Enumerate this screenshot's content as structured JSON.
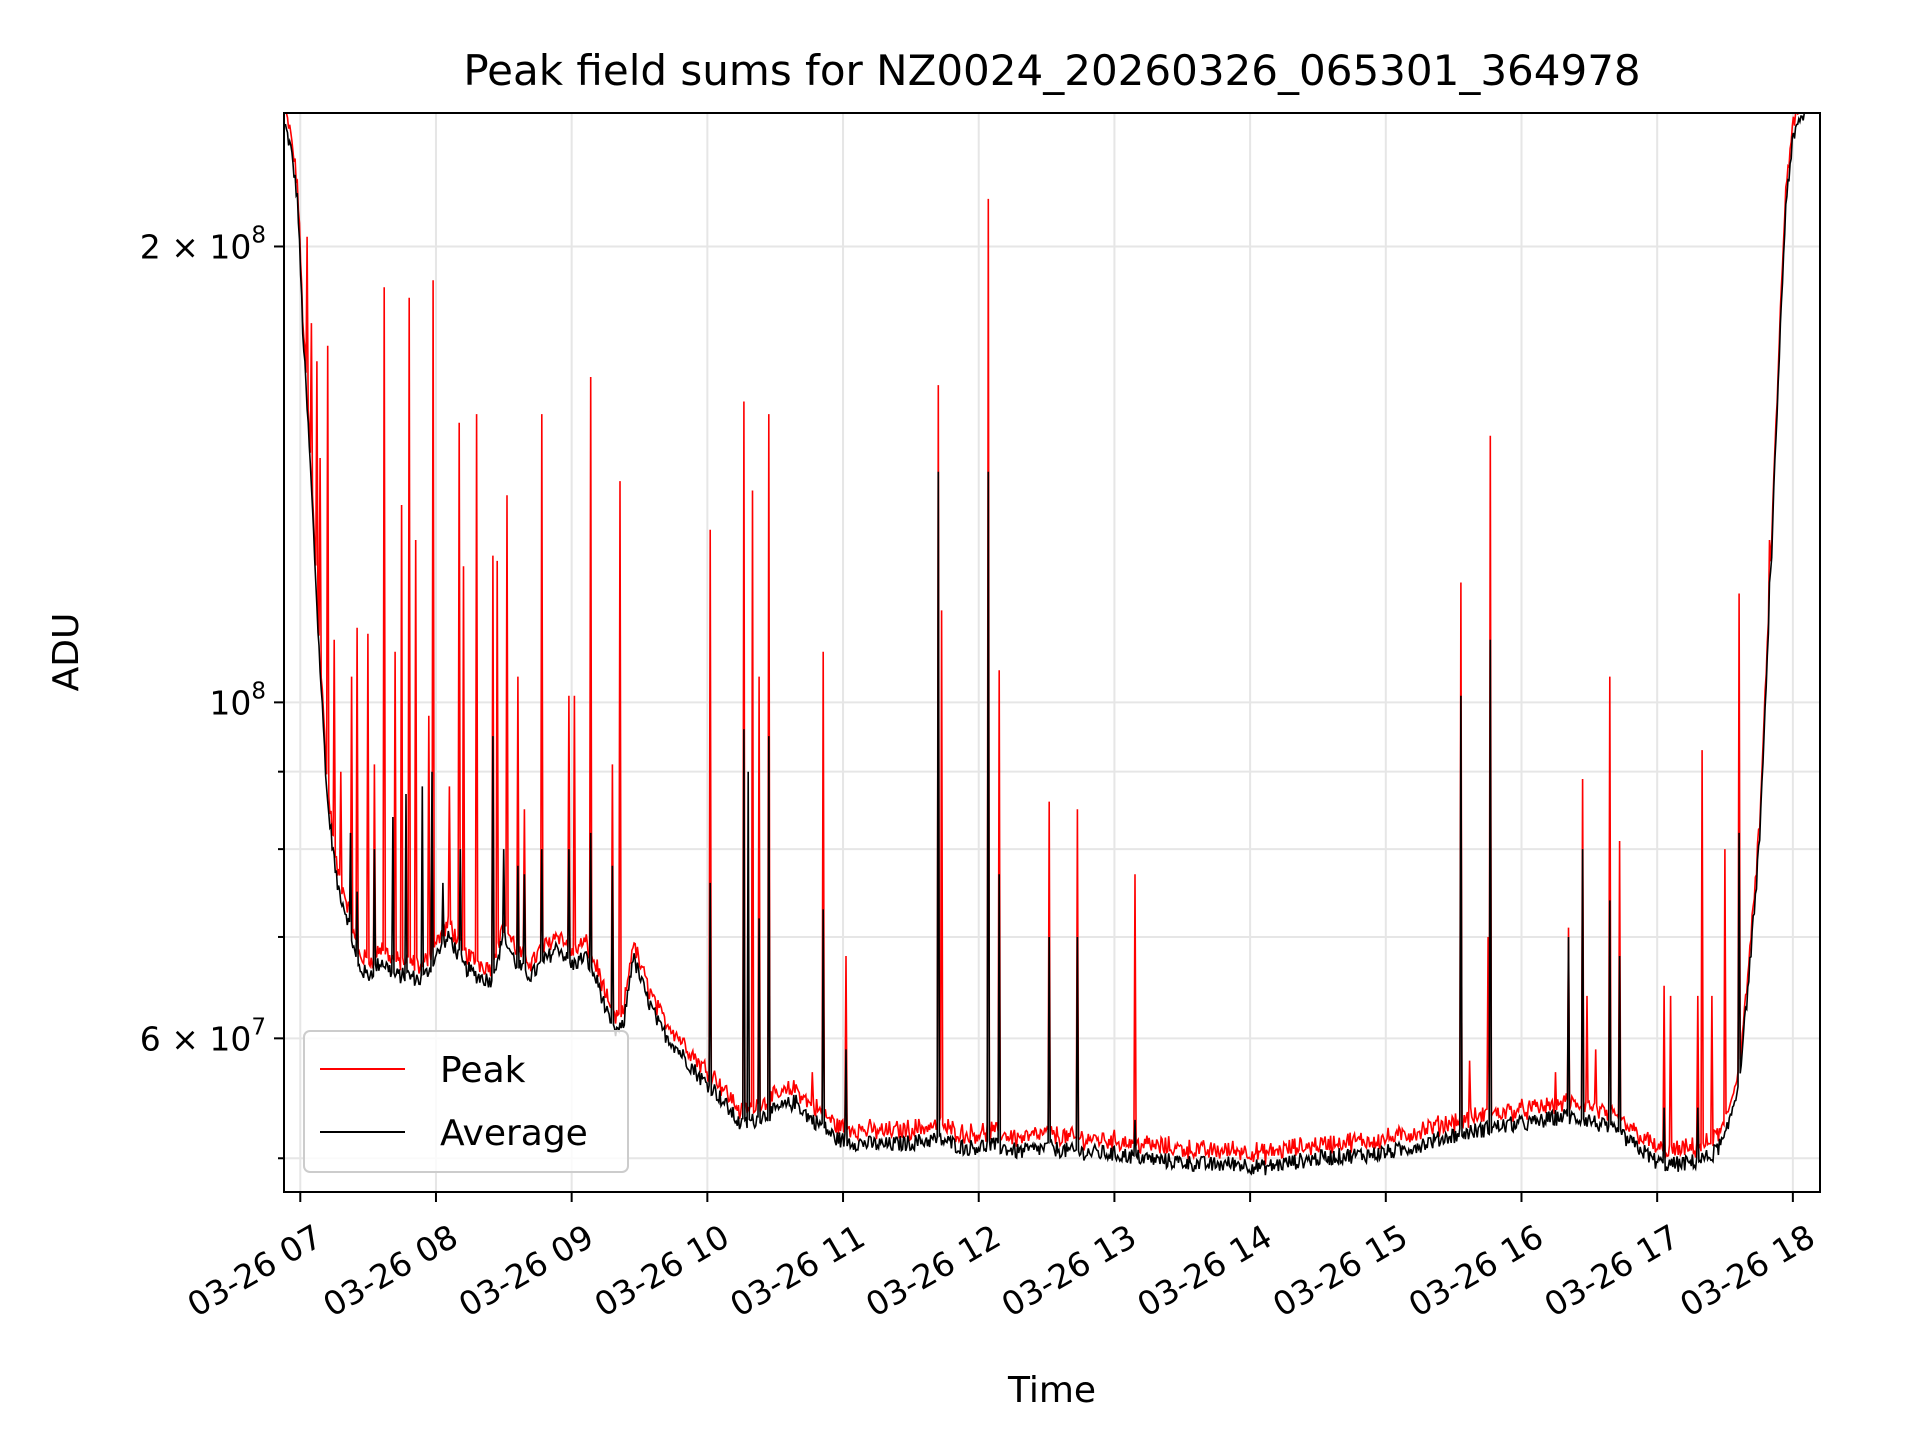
{
  "chart_data": {
    "type": "line",
    "title": "Peak field sums for NZ0024_20260326_065301_364978",
    "xlabel": "Time",
    "ylabel": "ADU",
    "yscale": "log",
    "xlim": [
      6.88,
      18.2
    ],
    "ylim": [
      47500000,
      245000000
    ],
    "grid": true,
    "legend_position": "lower-left",
    "x_ticks": [
      {
        "value": 7,
        "label": "03-26 07"
      },
      {
        "value": 8,
        "label": "03-26 08"
      },
      {
        "value": 9,
        "label": "03-26 09"
      },
      {
        "value": 10,
        "label": "03-26 10"
      },
      {
        "value": 11,
        "label": "03-26 11"
      },
      {
        "value": 12,
        "label": "03-26 12"
      },
      {
        "value": 13,
        "label": "03-26 13"
      },
      {
        "value": 14,
        "label": "03-26 14"
      },
      {
        "value": 15,
        "label": "03-26 15"
      },
      {
        "value": 16,
        "label": "03-26 16"
      },
      {
        "value": 17,
        "label": "03-26 17"
      },
      {
        "value": 18,
        "label": "03-26 18"
      }
    ],
    "y_ticks": [
      {
        "value": 200000000,
        "mantissa": "2",
        "exponent": "8"
      },
      {
        "value": 100000000,
        "mantissa": "",
        "exponent": "8"
      },
      {
        "value": 60000000,
        "mantissa": "6",
        "exponent": "7"
      }
    ],
    "y_minor_ticks": [
      50000000,
      70000000,
      80000000,
      90000000
    ],
    "series": [
      {
        "name": "Average",
        "color": "#000000",
        "baseline": [
          [
            6.89,
            240000000
          ],
          [
            6.93,
            232000000
          ],
          [
            6.98,
            215000000
          ],
          [
            7.02,
            175000000
          ],
          [
            7.08,
            140000000
          ],
          [
            7.13,
            112000000
          ],
          [
            7.2,
            86000000
          ],
          [
            7.27,
            76000000
          ],
          [
            7.35,
            72000000
          ],
          [
            7.42,
            67000000
          ],
          [
            7.5,
            66000000
          ],
          [
            7.6,
            67500000
          ],
          [
            7.7,
            66000000
          ],
          [
            7.8,
            66000000
          ],
          [
            7.9,
            65500000
          ],
          [
            8.0,
            68000000
          ],
          [
            8.1,
            70000000
          ],
          [
            8.2,
            67000000
          ],
          [
            8.3,
            66000000
          ],
          [
            8.4,
            65500000
          ],
          [
            8.5,
            70000000
          ],
          [
            8.6,
            67000000
          ],
          [
            8.7,
            66000000
          ],
          [
            8.8,
            67500000
          ],
          [
            8.9,
            69000000
          ],
          [
            9.0,
            67000000
          ],
          [
            9.1,
            68000000
          ],
          [
            9.2,
            65000000
          ],
          [
            9.3,
            60500000
          ],
          [
            9.38,
            61000000
          ],
          [
            9.45,
            68000000
          ],
          [
            9.55,
            64000000
          ],
          [
            9.65,
            61000000
          ],
          [
            9.75,
            59500000
          ],
          [
            9.85,
            58000000
          ],
          [
            9.95,
            56500000
          ],
          [
            10.05,
            55500000
          ],
          [
            10.15,
            54000000
          ],
          [
            10.25,
            52500000
          ],
          [
            10.35,
            53000000
          ],
          [
            10.45,
            53500000
          ],
          [
            10.55,
            54000000
          ],
          [
            10.65,
            54500000
          ],
          [
            10.75,
            53200000
          ],
          [
            10.85,
            52500000
          ],
          [
            10.95,
            51500000
          ],
          [
            11.1,
            51200000
          ],
          [
            11.3,
            51000000
          ],
          [
            11.5,
            51200000
          ],
          [
            11.7,
            51500000
          ],
          [
            11.9,
            50800000
          ],
          [
            12.1,
            51000000
          ],
          [
            12.3,
            50500000
          ],
          [
            12.5,
            50800000
          ],
          [
            12.7,
            50500000
          ],
          [
            12.9,
            50400000
          ],
          [
            13.1,
            50200000
          ],
          [
            13.3,
            49900000
          ],
          [
            13.5,
            49700000
          ],
          [
            13.7,
            49500000
          ],
          [
            13.9,
            49600000
          ],
          [
            14.1,
            49300000
          ],
          [
            14.3,
            49700000
          ],
          [
            14.5,
            50000000
          ],
          [
            14.7,
            50200000
          ],
          [
            14.9,
            50300000
          ],
          [
            15.1,
            50600000
          ],
          [
            15.3,
            51200000
          ],
          [
            15.5,
            51800000
          ],
          [
            15.7,
            52200000
          ],
          [
            15.9,
            52600000
          ],
          [
            16.1,
            52800000
          ],
          [
            16.3,
            53300000
          ],
          [
            16.5,
            53000000
          ],
          [
            16.7,
            52000000
          ],
          [
            16.9,
            50500000
          ],
          [
            17.0,
            49700000
          ],
          [
            17.1,
            49500000
          ],
          [
            17.2,
            49600000
          ],
          [
            17.3,
            49800000
          ],
          [
            17.4,
            50200000
          ],
          [
            17.5,
            51500000
          ],
          [
            17.6,
            56000000
          ],
          [
            17.65,
            62000000
          ],
          [
            17.7,
            70000000
          ],
          [
            17.75,
            80000000
          ],
          [
            17.8,
            100000000
          ],
          [
            17.85,
            130000000
          ],
          [
            17.9,
            170000000
          ],
          [
            17.95,
            215000000
          ],
          [
            18.0,
            235000000
          ],
          [
            18.05,
            242000000
          ],
          [
            18.1,
            246000000
          ]
        ],
        "spikes": [
          [
            7.37,
            82000000
          ],
          [
            7.42,
            75000000
          ],
          [
            7.55,
            80000000
          ],
          [
            7.68,
            84000000
          ],
          [
            7.78,
            87000000
          ],
          [
            7.9,
            88000000
          ],
          [
            7.97,
            90000000
          ],
          [
            8.05,
            76000000
          ],
          [
            8.18,
            80000000
          ],
          [
            8.42,
            95000000
          ],
          [
            8.5,
            80000000
          ],
          [
            8.6,
            78000000
          ],
          [
            8.65,
            77000000
          ],
          [
            8.78,
            80000000
          ],
          [
            8.98,
            80000000
          ],
          [
            9.14,
            82000000
          ],
          [
            9.3,
            78000000
          ],
          [
            10.02,
            76000000
          ],
          [
            10.27,
            96000000
          ],
          [
            10.3,
            90000000
          ],
          [
            10.38,
            72000000
          ],
          [
            10.45,
            95000000
          ],
          [
            10.85,
            73000000
          ],
          [
            11.02,
            59000000
          ],
          [
            11.7,
            142000000
          ],
          [
            12.07,
            142000000
          ],
          [
            12.15,
            77000000
          ],
          [
            12.52,
            70000000
          ],
          [
            12.73,
            70000000
          ],
          [
            13.15,
            53000000
          ],
          [
            15.55,
            101000000
          ],
          [
            15.77,
            110000000
          ],
          [
            16.35,
            70000000
          ],
          [
            16.45,
            80000000
          ],
          [
            16.65,
            74000000
          ],
          [
            16.72,
            68000000
          ],
          [
            17.05,
            54000000
          ],
          [
            17.3,
            54000000
          ],
          [
            17.6,
            82000000
          ],
          [
            17.83,
            120000000
          ]
        ]
      },
      {
        "name": "Peak",
        "color": "#ff0000",
        "baseline_offset": 1.015,
        "spikes": [
          [
            7.05,
            203000000
          ],
          [
            7.08,
            178000000
          ],
          [
            7.12,
            168000000
          ],
          [
            7.15,
            145000000
          ],
          [
            7.2,
            172000000
          ],
          [
            7.25,
            110000000
          ],
          [
            7.3,
            90000000
          ],
          [
            7.38,
            104000000
          ],
          [
            7.42,
            112000000
          ],
          [
            7.5,
            111000000
          ],
          [
            7.55,
            91000000
          ],
          [
            7.62,
            188000000
          ],
          [
            7.7,
            108000000
          ],
          [
            7.75,
            135000000
          ],
          [
            7.8,
            185000000
          ],
          [
            7.85,
            128000000
          ],
          [
            7.95,
            98000000
          ],
          [
            7.98,
            190000000
          ],
          [
            8.1,
            88000000
          ],
          [
            8.17,
            153000000
          ],
          [
            8.2,
            123000000
          ],
          [
            8.3,
            155000000
          ],
          [
            8.42,
            125000000
          ],
          [
            8.45,
            124000000
          ],
          [
            8.52,
            137000000
          ],
          [
            8.6,
            104000000
          ],
          [
            8.65,
            85000000
          ],
          [
            8.78,
            155000000
          ],
          [
            8.98,
            101000000
          ],
          [
            9.02,
            101000000
          ],
          [
            9.14,
            164000000
          ],
          [
            9.3,
            91000000
          ],
          [
            9.36,
            140000000
          ],
          [
            10.02,
            130000000
          ],
          [
            10.27,
            158000000
          ],
          [
            10.33,
            138000000
          ],
          [
            10.38,
            104000000
          ],
          [
            10.45,
            155000000
          ],
          [
            10.77,
            57000000
          ],
          [
            10.85,
            108000000
          ],
          [
            10.98,
            51000000
          ],
          [
            11.02,
            68000000
          ],
          [
            11.7,
            162000000
          ],
          [
            11.73,
            115000000
          ],
          [
            12.07,
            215000000
          ],
          [
            12.15,
            105000000
          ],
          [
            12.52,
            86000000
          ],
          [
            12.73,
            85000000
          ],
          [
            13.15,
            77000000
          ],
          [
            15.55,
            120000000
          ],
          [
            15.62,
            58000000
          ],
          [
            15.75,
            70000000
          ],
          [
            15.77,
            150000000
          ],
          [
            16.25,
            57000000
          ],
          [
            16.35,
            71000000
          ],
          [
            16.45,
            89000000
          ],
          [
            16.48,
            64000000
          ],
          [
            16.55,
            59000000
          ],
          [
            16.65,
            104000000
          ],
          [
            16.72,
            81000000
          ],
          [
            17.05,
            65000000
          ],
          [
            17.1,
            64000000
          ],
          [
            17.3,
            64000000
          ],
          [
            17.33,
            93000000
          ],
          [
            17.4,
            64000000
          ],
          [
            17.5,
            80000000
          ],
          [
            17.6,
            118000000
          ],
          [
            17.83,
            128000000
          ]
        ]
      }
    ]
  }
}
